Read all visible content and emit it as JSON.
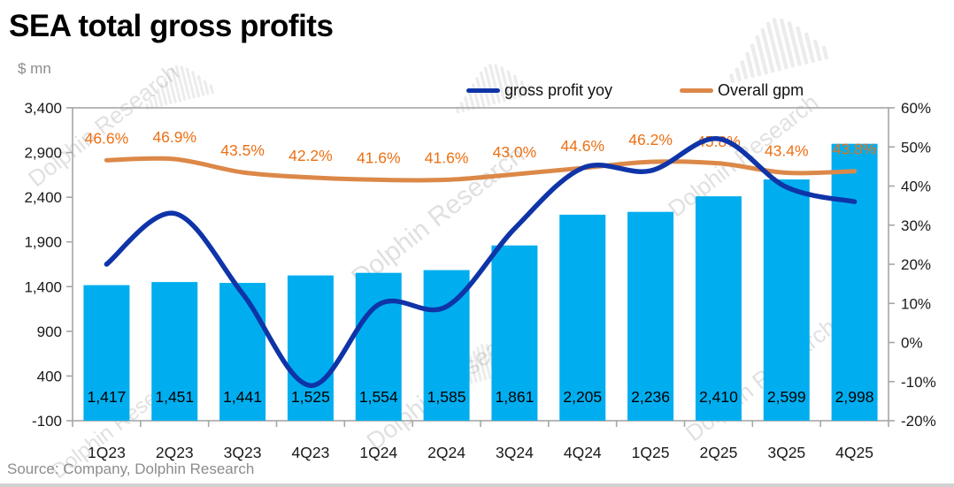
{
  "header": {
    "title": "SEA total gross profits",
    "unit": "$ mn"
  },
  "source": "Source: Company, Dolphin Research",
  "watermark": {
    "text": "Dolphin Research"
  },
  "chart_data": {
    "type": "bar+line",
    "title": "SEA total gross profits",
    "ylabel_left": "$ mn",
    "grid": false,
    "legend_position": "top-right",
    "categories": [
      "1Q23",
      "2Q23",
      "3Q23",
      "4Q23",
      "1Q24",
      "2Q24",
      "3Q24",
      "4Q24",
      "1Q25",
      "2Q25",
      "3Q25",
      "4Q25"
    ],
    "bar_series": {
      "name": "SEA total gross profits",
      "axis": "left",
      "values": [
        1417,
        1451,
        1441,
        1525,
        1554,
        1585,
        1861,
        2205,
        2236,
        2410,
        2599,
        2998
      ],
      "labels": [
        "1,417",
        "1,451",
        "1,441",
        "1,525",
        "1,554",
        "1,585",
        "1,861",
        "2,205",
        "2,236",
        "2,410",
        "2,599",
        "2,998"
      ],
      "color": "#00AEEF",
      "label_color": "#000000"
    },
    "line_series": [
      {
        "name": "gross profit yoy",
        "axis": "right",
        "unit": "%",
        "values": [
          20,
          33,
          12.5,
          -11,
          9.7,
          9.2,
          29.1,
          44.6,
          43.9,
          52.1,
          39.7,
          36
        ],
        "color": "#0F34A8",
        "show_labels": false
      },
      {
        "name": "Overall gpm",
        "axis": "right",
        "unit": "%",
        "values": [
          46.6,
          46.9,
          43.5,
          42.2,
          41.6,
          41.6,
          43.0,
          44.6,
          46.2,
          45.8,
          43.4,
          43.8
        ],
        "labels": [
          "46.6%",
          "46.9%",
          "43.5%",
          "42.2%",
          "41.6%",
          "41.6%",
          "43.0%",
          "44.6%",
          "46.2%",
          "45.8%",
          "43.4%",
          "43.8%"
        ],
        "color": "#DC8848",
        "label_color": "#EC7014",
        "show_labels": true
      }
    ],
    "left_axis": {
      "min": -100,
      "max": 3400,
      "tick_step": 500,
      "tick_labels": [
        "3,400",
        "2,900",
        "2,400",
        "1,900",
        "1,400",
        "900",
        "400",
        "-100"
      ]
    },
    "right_axis": {
      "min": -20,
      "max": 60,
      "tick_step": 10,
      "tick_labels": [
        "60%",
        "50%",
        "40%",
        "30%",
        "20%",
        "10%",
        "0%",
        "-10%",
        "-20%"
      ]
    },
    "axis_color": "#A6A6A6",
    "text_color": "#1a1a1a"
  }
}
